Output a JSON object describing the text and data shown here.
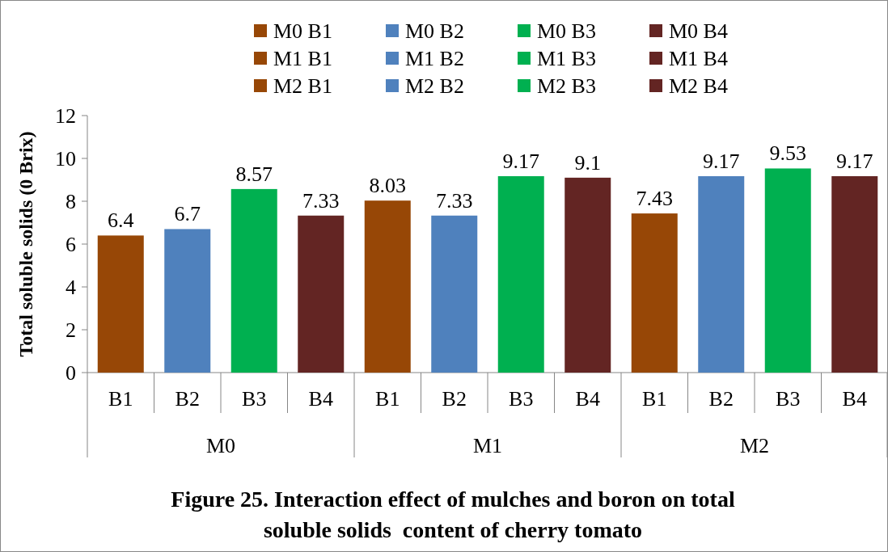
{
  "chart_data": {
    "type": "bar",
    "title": "Figure 25. Interaction effect of mulches and boron on total soluble solids  content of cherry tomato",
    "ylabel": "Total soluble solids (0 Brix)",
    "categories": [
      "B1",
      "B2",
      "B3",
      "B4",
      "B1",
      "B2",
      "B3",
      "B4",
      "B1",
      "B2",
      "B3",
      "B4"
    ],
    "annotations": [
      "M0",
      "M1",
      "M2"
    ],
    "series": [
      {
        "name": "M0 B1",
        "color": "#974706",
        "values": [
          6.4,
          null,
          null,
          null,
          null,
          null,
          null,
          null,
          null,
          null,
          null,
          null
        ]
      },
      {
        "name": "M0 B2",
        "color": "#4f81bd",
        "values": [
          null,
          6.7,
          null,
          null,
          null,
          null,
          null,
          null,
          null,
          null,
          null,
          null
        ]
      },
      {
        "name": "M0 B3",
        "color": "#00b050",
        "values": [
          null,
          null,
          8.57,
          null,
          null,
          null,
          null,
          null,
          null,
          null,
          null,
          null
        ]
      },
      {
        "name": "M0 B4",
        "color": "#632523",
        "values": [
          null,
          null,
          null,
          7.33,
          null,
          null,
          null,
          null,
          null,
          null,
          null,
          null
        ]
      },
      {
        "name": "M1 B1",
        "color": "#974706",
        "values": [
          null,
          null,
          null,
          null,
          8.03,
          null,
          null,
          null,
          null,
          null,
          null,
          null
        ]
      },
      {
        "name": "M1 B2",
        "color": "#4f81bd",
        "values": [
          null,
          null,
          null,
          null,
          null,
          7.33,
          null,
          null,
          null,
          null,
          null,
          null
        ]
      },
      {
        "name": "M1 B3",
        "color": "#00b050",
        "values": [
          null,
          null,
          null,
          null,
          null,
          null,
          9.17,
          null,
          null,
          null,
          null,
          null
        ]
      },
      {
        "name": "M1 B4",
        "color": "#632523",
        "values": [
          null,
          null,
          null,
          null,
          null,
          null,
          null,
          9.1,
          null,
          null,
          null,
          null
        ]
      },
      {
        "name": "M2 B1",
        "color": "#974706",
        "values": [
          null,
          null,
          null,
          null,
          null,
          null,
          null,
          null,
          7.43,
          null,
          null,
          null
        ]
      },
      {
        "name": "M2 B2",
        "color": "#4f81bd",
        "values": [
          null,
          null,
          null,
          null,
          null,
          null,
          null,
          null,
          null,
          9.17,
          null,
          null
        ]
      },
      {
        "name": "M2 B3",
        "color": "#00b050",
        "values": [
          null,
          null,
          null,
          null,
          null,
          null,
          null,
          null,
          null,
          null,
          9.53,
          null
        ]
      },
      {
        "name": "M2 B4",
        "color": "#632523",
        "values": [
          null,
          null,
          null,
          null,
          null,
          null,
          null,
          null,
          null,
          null,
          null,
          9.17
        ]
      }
    ],
    "ylim": [
      0,
      12
    ],
    "yticks": [
      0,
      2,
      4,
      6,
      8,
      10,
      12
    ],
    "data_labels": true,
    "legend": "top",
    "grid": false
  }
}
